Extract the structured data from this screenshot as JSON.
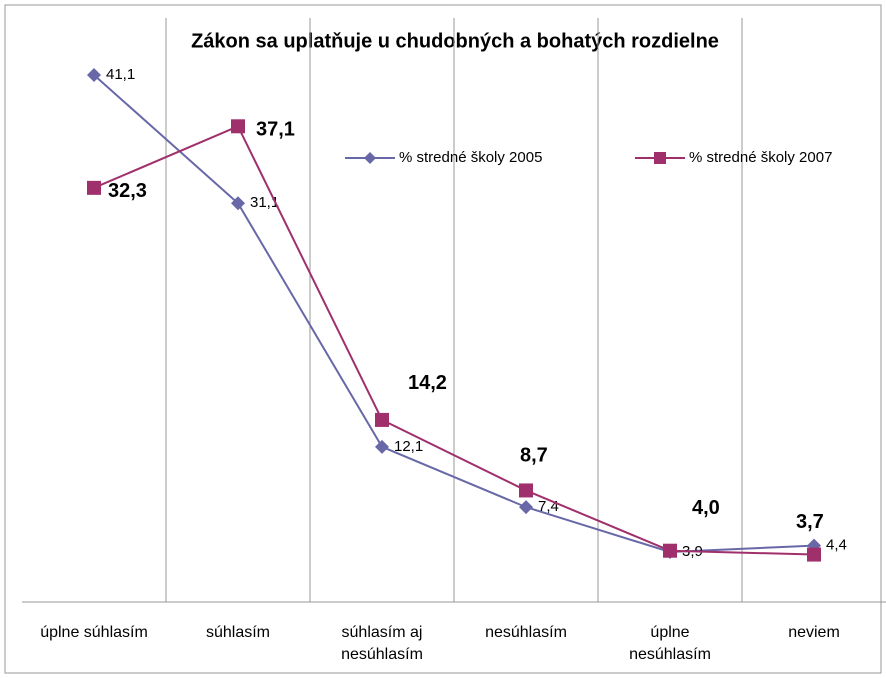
{
  "chart_data": {
    "type": "line",
    "title": "Zákon sa uplatňuje u chudobných a bohatých rozdielne",
    "categories": [
      "úplne súhlasím",
      "súhlasím",
      "súhlasím aj\nnesúhlasím",
      "nesúhlasím",
      "úplne\nnesúhlasím",
      "neviem"
    ],
    "series": [
      {
        "name": "% stredné školy 2005",
        "color": "#6868a8",
        "marker": "diamond",
        "values": [
          41.1,
          31.1,
          12.1,
          7.4,
          3.9,
          4.4
        ],
        "value_labels": [
          "41,1",
          "31,1",
          "12,1",
          "7,4",
          "3,9",
          "4,4"
        ]
      },
      {
        "name": "% stredné školy 2007",
        "color": "#a0306c",
        "marker": "square",
        "values": [
          32.3,
          37.1,
          14.2,
          8.7,
          4.0,
          3.7
        ],
        "value_labels": [
          "32,3",
          "37,1",
          "14,2",
          "8,7",
          "4,0",
          "3,7"
        ]
      }
    ],
    "ylim": [
      0,
      45
    ],
    "grid": true
  }
}
